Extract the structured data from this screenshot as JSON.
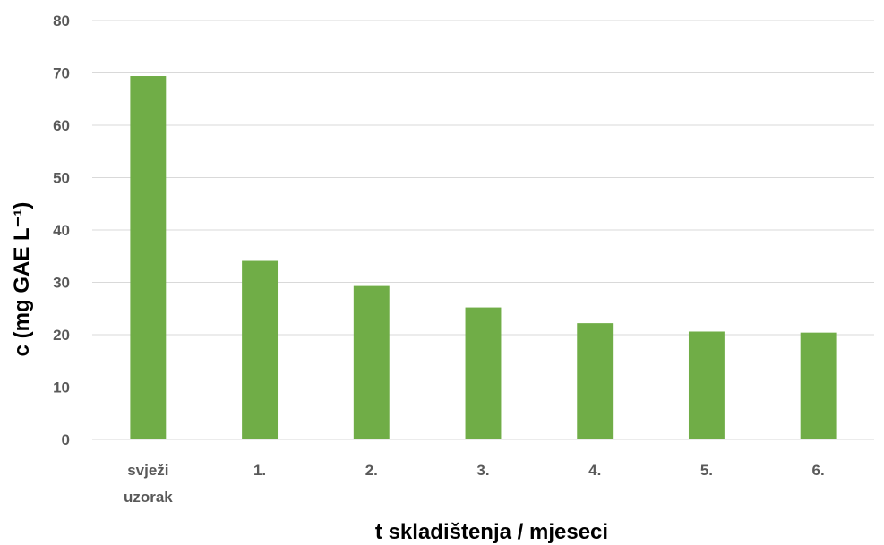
{
  "chart_data": {
    "type": "bar",
    "categories": [
      "svježi uzorak",
      "1.",
      "2.",
      "3.",
      "4.",
      "5.",
      "6."
    ],
    "category_lines": [
      [
        "svježi",
        "uzorak"
      ],
      [
        "1."
      ],
      [
        "2."
      ],
      [
        "3."
      ],
      [
        "4."
      ],
      [
        "5."
      ],
      [
        "6."
      ]
    ],
    "values": [
      69.4,
      34.1,
      29.3,
      25.2,
      22.2,
      20.6,
      20.4
    ],
    "xlabel": "t skladištenja / mjeseci",
    "ylabel": "c (mg GAE L⁻¹)",
    "ylim": [
      0,
      80
    ],
    "yticks": [
      "0",
      "10",
      "20",
      "30",
      "40",
      "50",
      "60",
      "70",
      "80"
    ],
    "grid": true,
    "legend": "none",
    "bar_color": "#70ad47"
  }
}
